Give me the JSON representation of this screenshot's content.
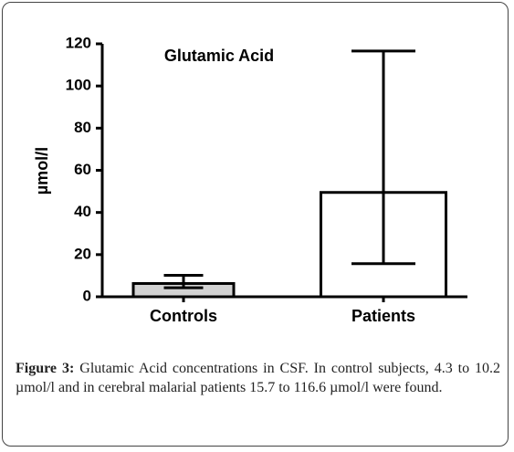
{
  "chart_data": {
    "type": "bar",
    "title": "Glutamic Acid",
    "y_label": "µmol/l",
    "categories": [
      "Controls",
      "Patients"
    ],
    "values": [
      6.3,
      49.5
    ],
    "error_ranges": [
      [
        4.3,
        10.2
      ],
      [
        15.7,
        116.6
      ]
    ],
    "colors": [
      "#d3d3d3",
      "#ffffff"
    ],
    "ylim": [
      0,
      120
    ],
    "yticks": [
      0,
      20,
      40,
      60,
      80,
      100,
      120
    ]
  },
  "caption": {
    "label": "Figure 3:",
    "text": "Glutamic Acid concentrations in CSF. In control subjects, 4.3 to 10.2 µmol/l and in cerebral malarial patients 15.7 to 116.6 µmol/l were found."
  }
}
